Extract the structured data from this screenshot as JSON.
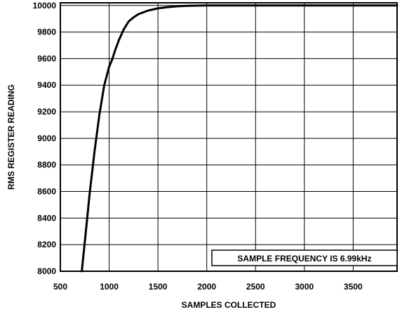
{
  "chart_data": {
    "type": "line",
    "title": "",
    "xlabel": "SAMPLES COLLECTED",
    "ylabel": "RMS REGISTER READING",
    "xlim": [
      500,
      3950
    ],
    "ylim": [
      8000,
      10020
    ],
    "x_ticks": [
      500,
      1000,
      1500,
      2000,
      2500,
      3000,
      3500
    ],
    "y_ticks": [
      8000,
      8200,
      8400,
      8600,
      8800,
      9000,
      9200,
      9400,
      9600,
      9800,
      10000
    ],
    "grid": true,
    "legend": "none",
    "annotation": "SAMPLE FREQUENCY IS 6.99kHz",
    "series": [
      {
        "x": [
          720,
          760,
          800,
          850,
          900,
          950,
          1000,
          1030,
          1060,
          1100,
          1150,
          1200,
          1250,
          1300,
          1400,
          1500,
          1600,
          1700,
          1800,
          1900,
          2000,
          2200,
          2500,
          3000,
          3500,
          3950
        ],
        "y": [
          8000,
          8290,
          8580,
          8900,
          9180,
          9400,
          9540,
          9590,
          9660,
          9740,
          9820,
          9880,
          9910,
          9935,
          9962,
          9978,
          9988,
          9994,
          9997,
          9999,
          10000,
          10000,
          10000,
          10000,
          10000,
          10000
        ],
        "color": "#000000"
      }
    ]
  }
}
